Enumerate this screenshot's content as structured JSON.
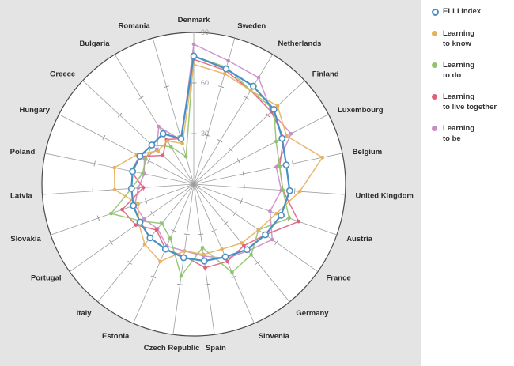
{
  "chart_data": {
    "type": "radar",
    "axis_ticks": [
      30,
      60,
      90
    ],
    "range": [
      0,
      90
    ],
    "categories": [
      "Denmark",
      "Sweden",
      "Netherlands",
      "Finland",
      "Luxembourg",
      "Belgium",
      "United Kingdom",
      "Austria",
      "France",
      "Germany",
      "Slovenia",
      "Spain",
      "Czech Republic",
      "Estonia",
      "Italy",
      "Portugal",
      "Slovakia",
      "Latvia",
      "Poland",
      "Hungary",
      "Greece",
      "Bulgaria",
      "Romania"
    ],
    "series": [
      {
        "name": "ELLI Index",
        "key": "elli",
        "color": "#4a90c4",
        "values": [
          76,
          71,
          68,
          65,
          59,
          56,
          57,
          55,
          52,
          50,
          47,
          46,
          44,
          42,
          41,
          39,
          38,
          37,
          37,
          36,
          34,
          35,
          28
        ]
      },
      {
        "name": "Learning to know",
        "key": "know",
        "color": "#e8b05c",
        "values": [
          71,
          68,
          65,
          68,
          62,
          78,
          63,
          52,
          47,
          45,
          42,
          42,
          40,
          50,
          46,
          40,
          35,
          47,
          48,
          38,
          29,
          30,
          25
        ]
      },
      {
        "name": "Learning to do",
        "key": "do",
        "color": "#8fc46a",
        "values": [
          76,
          72,
          65,
          65,
          55,
          52,
          53,
          60,
          47,
          54,
          57,
          38,
          55,
          35,
          30,
          38,
          52,
          37,
          31,
          32,
          34,
          26,
          17
        ]
      },
      {
        "name": "Learning to live together",
        "key": "together",
        "color": "#e0607a",
        "values": [
          74,
          70,
          65,
          63,
          60,
          52,
          53,
          66,
          52,
          47,
          50,
          50,
          43,
          42,
          35,
          42,
          45,
          30,
          38,
          36,
          25,
          31,
          28
        ]
      },
      {
        "name": "Learning to be",
        "key": "be",
        "color": "#c98cc4",
        "values": [
          83,
          76,
          74,
          63,
          65,
          50,
          52,
          48,
          57,
          51,
          48,
          43,
          40,
          40,
          34,
          36,
          37,
          33,
          30,
          33,
          30,
          40,
          27
        ]
      }
    ]
  },
  "legend": {
    "items": [
      {
        "lines": [
          "ELLI Index"
        ],
        "color": "#4a90c4",
        "hollow": true
      },
      {
        "lines": [
          "Learning",
          "to know"
        ],
        "color": "#e8b05c",
        "hollow": false
      },
      {
        "lines": [
          "Learning",
          "to do"
        ],
        "color": "#8fc46a",
        "hollow": false
      },
      {
        "lines": [
          "Learning",
          "to live together"
        ],
        "color": "#e0607a",
        "hollow": false
      },
      {
        "lines": [
          "Learning",
          "to be"
        ],
        "color": "#c98cc4",
        "hollow": false
      }
    ]
  }
}
